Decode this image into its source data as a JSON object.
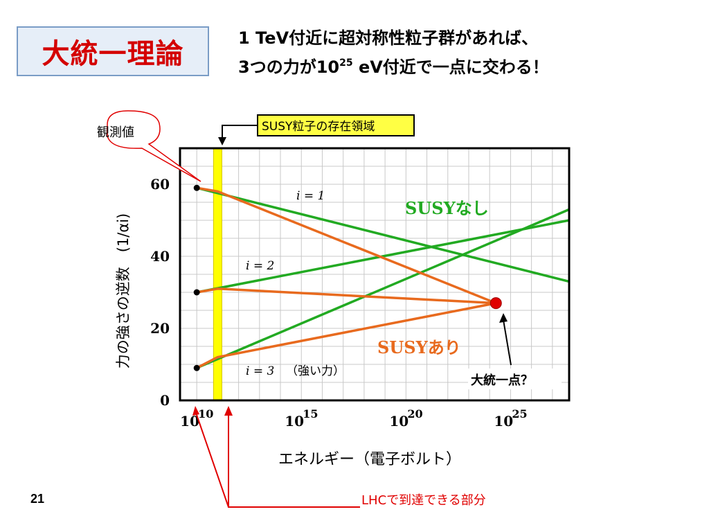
{
  "slide": {
    "title": "大統一理論",
    "headline_line1": "1 TeV付近に超対称性粒子群があれば、",
    "headline_line2_pre": "3つの力が10",
    "headline_line2_sup": "25",
    "headline_line2_post": " eV付近で一点に交わる！",
    "page_number": "21"
  },
  "annotations": {
    "observed": "観測値",
    "susy_region": "SUSY粒子の存在領域",
    "unification": "大統一点？",
    "lhc": "LHCで到達できる部分",
    "no_susy": "SUSYなし",
    "with_susy": "SUSYあり",
    "i1": "i = 1",
    "i2": "i = 2",
    "i3": "i = 3",
    "strong_force": "（強い力）"
  },
  "colors": {
    "no_susy": "#22aa22",
    "with_susy": "#e86a1e",
    "unification_point": "#e00000",
    "susy_band": "#ffff00",
    "callout": "#e00000"
  },
  "chart_data": {
    "type": "line",
    "xlabel": "エネルギー（電子ボルト）",
    "ylabel": "力の強さの逆数　(1/αi)",
    "x_scale": "log10",
    "xlim_log10": [
      9.2,
      27.8
    ],
    "ylim": [
      0,
      70
    ],
    "grid": true,
    "x_ticks": [
      {
        "base": "10",
        "exp": "10",
        "log10": 10
      },
      {
        "base": "10",
        "exp": "15",
        "log10": 15
      },
      {
        "base": "10",
        "exp": "20",
        "log10": 20
      },
      {
        "base": "10",
        "exp": "25",
        "log10": 25
      }
    ],
    "y_ticks": [
      {
        "label": "0",
        "value": 0
      },
      {
        "label": "20",
        "value": 20
      },
      {
        "label": "40",
        "value": 40
      },
      {
        "label": "60",
        "value": 60
      }
    ],
    "observed_points": [
      {
        "log10_x": 10,
        "y": 59
      },
      {
        "log10_x": 10,
        "y": 30
      },
      {
        "log10_x": 10,
        "y": 9
      }
    ],
    "series": [
      {
        "name": "SUSYなし",
        "group": "no_susy",
        "points": [
          [
            10,
            59
          ],
          [
            27.8,
            33
          ]
        ]
      },
      {
        "name": "SUSYなし",
        "group": "no_susy",
        "points": [
          [
            10,
            30
          ],
          [
            27.8,
            50
          ]
        ]
      },
      {
        "name": "SUSYなし",
        "group": "no_susy",
        "points": [
          [
            10,
            9
          ],
          [
            27.8,
            53
          ]
        ]
      },
      {
        "name": "SUSYあり",
        "group": "with_susy",
        "points": [
          [
            10,
            59
          ],
          [
            11,
            58
          ],
          [
            24.3,
            27
          ]
        ]
      },
      {
        "name": "SUSYあり",
        "group": "with_susy",
        "points": [
          [
            10,
            30
          ],
          [
            11,
            31
          ],
          [
            24.3,
            27
          ]
        ]
      },
      {
        "name": "SUSYあり",
        "group": "with_susy",
        "points": [
          [
            10,
            9
          ],
          [
            11,
            12
          ],
          [
            24.3,
            27
          ]
        ]
      }
    ],
    "unification_point": {
      "log10_x": 24.3,
      "y": 27
    },
    "susy_band_log10": [
      10.8,
      11.2
    ],
    "lhc_reach_log10": [
      10,
      11.2
    ]
  }
}
